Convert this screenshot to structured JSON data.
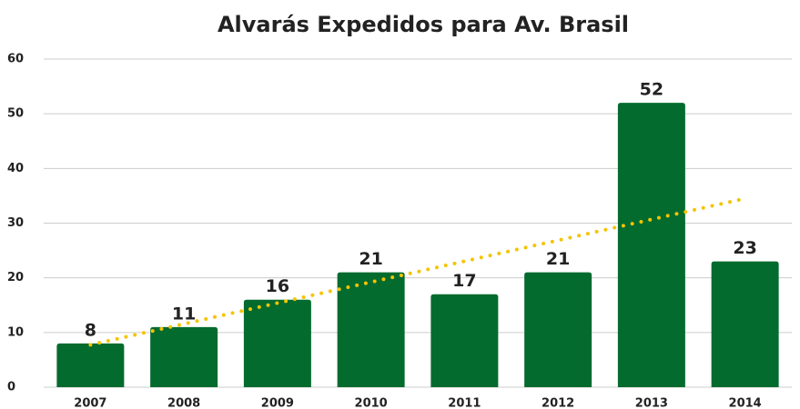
{
  "chart_data": {
    "type": "bar",
    "title": "Alvarás Expedidos para Av. Brasil",
    "categories": [
      "2007",
      "2008",
      "2009",
      "2010",
      "2011",
      "2012",
      "2013",
      "2014"
    ],
    "values": [
      8,
      11,
      16,
      21,
      17,
      21,
      52,
      23
    ],
    "color": "#036b2e",
    "ylim": [
      0,
      60
    ],
    "yticks": [
      0,
      10,
      20,
      30,
      40,
      50,
      60
    ],
    "grid": true,
    "trendline": true,
    "trendline_color": "#f5c400"
  }
}
